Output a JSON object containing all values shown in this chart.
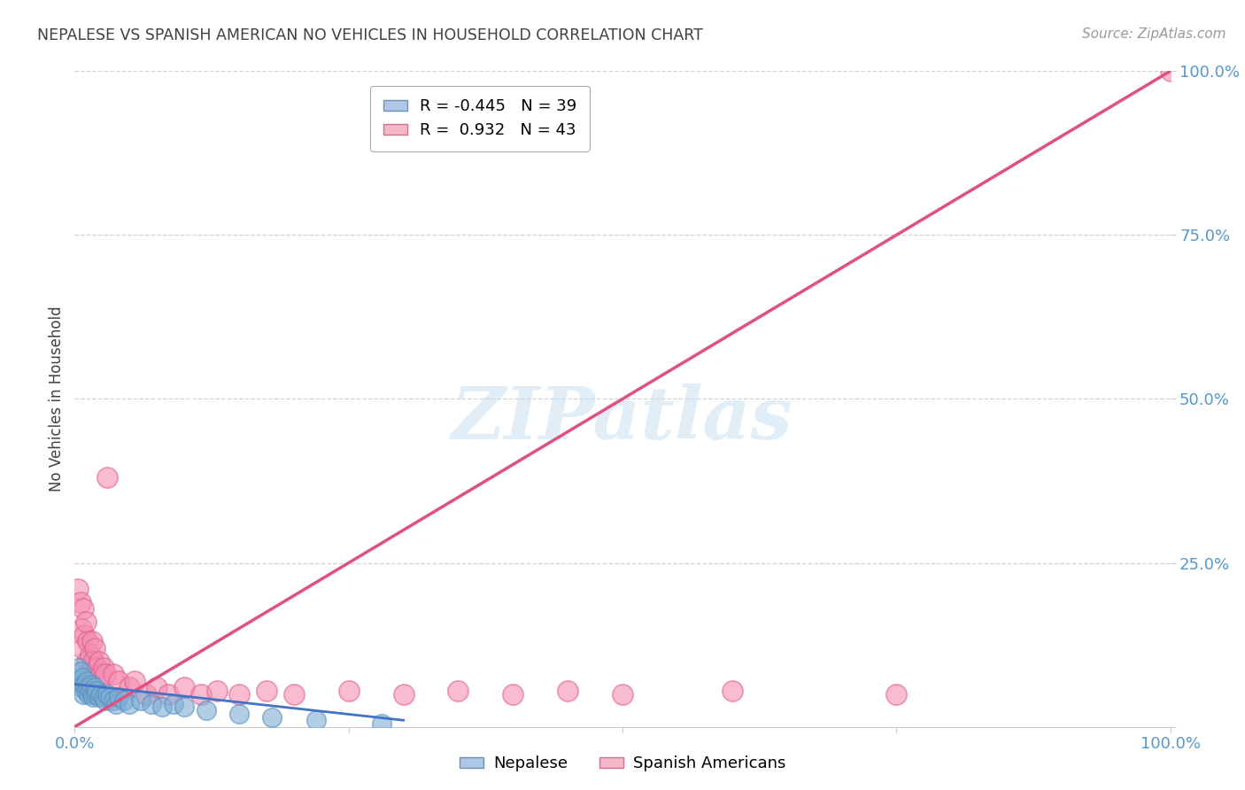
{
  "title": "NEPALESE VS SPANISH AMERICAN NO VEHICLES IN HOUSEHOLD CORRELATION CHART",
  "source": "Source: ZipAtlas.com",
  "ylabel": "No Vehicles in Household",
  "watermark": "ZIPatlas",
  "xlim": [
    0,
    1.0
  ],
  "ylim": [
    0,
    1.0
  ],
  "nepalese_color": "#7daed4",
  "nepalese_edge": "#5a8fbf",
  "spanish_color": "#f48fb1",
  "spanish_edge": "#e06090",
  "nepalese_line_color": "#4472c4",
  "spanish_line_color": "#e05080",
  "background_color": "#ffffff",
  "grid_color": "#c8c8c8",
  "title_color": "#404040",
  "axis_label_color": "#404040",
  "tick_color": "#5599cc",
  "source_color": "#999999",
  "nepalese_points": [
    [
      0.003,
      0.09
    ],
    [
      0.004,
      0.07
    ],
    [
      0.005,
      0.085
    ],
    [
      0.006,
      0.06
    ],
    [
      0.007,
      0.075
    ],
    [
      0.008,
      0.05
    ],
    [
      0.009,
      0.065
    ],
    [
      0.01,
      0.055
    ],
    [
      0.011,
      0.07
    ],
    [
      0.012,
      0.06
    ],
    [
      0.013,
      0.05
    ],
    [
      0.014,
      0.055
    ],
    [
      0.015,
      0.065
    ],
    [
      0.016,
      0.05
    ],
    [
      0.017,
      0.045
    ],
    [
      0.018,
      0.06
    ],
    [
      0.019,
      0.05
    ],
    [
      0.02,
      0.055
    ],
    [
      0.022,
      0.045
    ],
    [
      0.024,
      0.05
    ],
    [
      0.026,
      0.045
    ],
    [
      0.028,
      0.04
    ],
    [
      0.03,
      0.05
    ],
    [
      0.032,
      0.045
    ],
    [
      0.035,
      0.04
    ],
    [
      0.038,
      0.035
    ],
    [
      0.04,
      0.045
    ],
    [
      0.045,
      0.04
    ],
    [
      0.05,
      0.035
    ],
    [
      0.06,
      0.04
    ],
    [
      0.07,
      0.035
    ],
    [
      0.08,
      0.03
    ],
    [
      0.09,
      0.035
    ],
    [
      0.1,
      0.03
    ],
    [
      0.12,
      0.025
    ],
    [
      0.15,
      0.02
    ],
    [
      0.18,
      0.015
    ],
    [
      0.22,
      0.01
    ],
    [
      0.28,
      0.005
    ]
  ],
  "spanish_points": [
    [
      0.003,
      0.21
    ],
    [
      0.005,
      0.19
    ],
    [
      0.006,
      0.15
    ],
    [
      0.007,
      0.12
    ],
    [
      0.008,
      0.18
    ],
    [
      0.009,
      0.14
    ],
    [
      0.01,
      0.16
    ],
    [
      0.011,
      0.1
    ],
    [
      0.012,
      0.13
    ],
    [
      0.013,
      0.08
    ],
    [
      0.014,
      0.11
    ],
    [
      0.015,
      0.09
    ],
    [
      0.016,
      0.13
    ],
    [
      0.017,
      0.1
    ],
    [
      0.018,
      0.12
    ],
    [
      0.02,
      0.09
    ],
    [
      0.022,
      0.1
    ],
    [
      0.024,
      0.08
    ],
    [
      0.026,
      0.09
    ],
    [
      0.028,
      0.08
    ],
    [
      0.03,
      0.38
    ],
    [
      0.035,
      0.08
    ],
    [
      0.04,
      0.07
    ],
    [
      0.05,
      0.06
    ],
    [
      0.055,
      0.07
    ],
    [
      0.065,
      0.05
    ],
    [
      0.075,
      0.06
    ],
    [
      0.085,
      0.05
    ],
    [
      0.1,
      0.06
    ],
    [
      0.115,
      0.05
    ],
    [
      0.13,
      0.055
    ],
    [
      0.15,
      0.05
    ],
    [
      0.175,
      0.055
    ],
    [
      0.2,
      0.05
    ],
    [
      0.25,
      0.055
    ],
    [
      0.3,
      0.05
    ],
    [
      0.35,
      0.055
    ],
    [
      0.4,
      0.05
    ],
    [
      0.45,
      0.055
    ],
    [
      0.5,
      0.05
    ],
    [
      0.6,
      0.055
    ],
    [
      0.75,
      0.05
    ],
    [
      1.0,
      1.0
    ]
  ],
  "spanish_line_x": [
    0.0,
    1.0
  ],
  "spanish_line_y": [
    0.0,
    1.0
  ],
  "nepalese_line_x": [
    0.0,
    0.3
  ],
  "nepalese_line_y": [
    0.065,
    0.01
  ]
}
